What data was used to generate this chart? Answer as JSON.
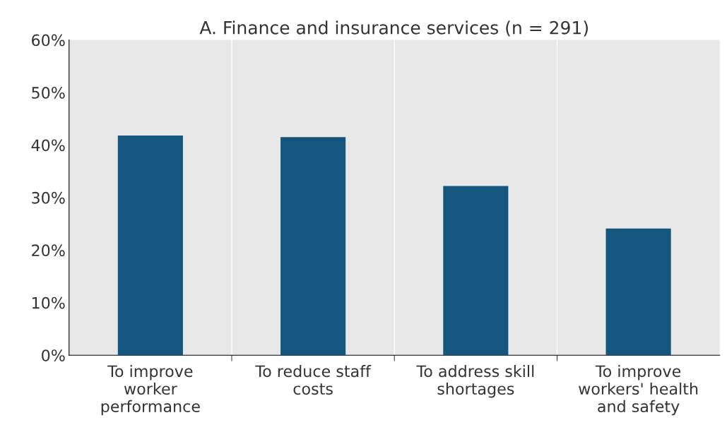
{
  "chart_data": {
    "type": "bar",
    "title": "A. Finance and insurance services (n = 291)",
    "categories": [
      "To improve worker performance",
      "To reduce staff costs",
      "To address skill shortages",
      "To improve workers' health and safety"
    ],
    "values": [
      41.8,
      41.5,
      32.2,
      24.1
    ],
    "color": "#14567e",
    "ylim": [
      0,
      60
    ],
    "yticks": [
      {
        "value": 0,
        "label": "0%"
      },
      {
        "value": 10,
        "label": "10%"
      },
      {
        "value": 20,
        "label": "20%"
      },
      {
        "value": 30,
        "label": "30%"
      },
      {
        "value": 40,
        "label": "40%"
      },
      {
        "value": 50,
        "label": "50%"
      },
      {
        "value": 60,
        "label": "60%"
      }
    ],
    "grid": "x"
  }
}
